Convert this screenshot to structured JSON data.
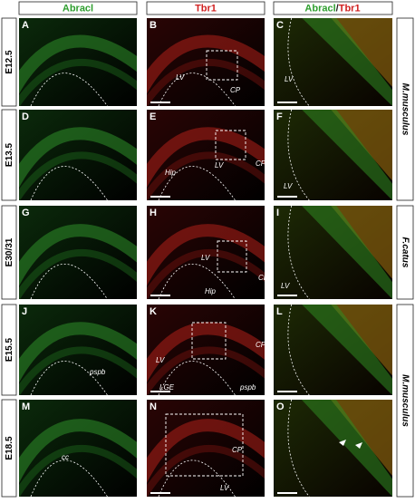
{
  "headers": {
    "col1": "Abracl",
    "col2": "Tbr1",
    "col3": {
      "a": "Abracl",
      "sep": "/",
      "b": "Tbr1"
    }
  },
  "rows": [
    {
      "stage": "E12.5",
      "panels": [
        {
          "letter": "A",
          "labels": []
        },
        {
          "letter": "B",
          "labels": [
            "LV",
            "CP"
          ]
        },
        {
          "letter": "C",
          "labels": [
            "LV"
          ]
        }
      ]
    },
    {
      "stage": "E13.5",
      "panels": [
        {
          "letter": "D",
          "labels": []
        },
        {
          "letter": "E",
          "labels": [
            "Hip",
            "LV",
            "CP"
          ]
        },
        {
          "letter": "F",
          "labels": [
            "LV"
          ]
        }
      ]
    },
    {
      "stage": "E30/31",
      "panels": [
        {
          "letter": "G",
          "labels": []
        },
        {
          "letter": "H",
          "labels": [
            "LV",
            "CP",
            "Hip"
          ]
        },
        {
          "letter": "I",
          "labels": [
            "LV"
          ]
        }
      ]
    },
    {
      "stage": "E15.5",
      "panels": [
        {
          "letter": "J",
          "labels": [
            "pspb"
          ]
        },
        {
          "letter": "K",
          "labels": [
            "LV",
            "LGE",
            "pspb",
            "CP"
          ]
        },
        {
          "letter": "L",
          "labels": []
        }
      ]
    },
    {
      "stage": "E18.5",
      "panels": [
        {
          "letter": "M",
          "labels": [
            "cc"
          ]
        },
        {
          "letter": "N",
          "labels": [
            "CP",
            "LV"
          ]
        },
        {
          "letter": "O",
          "labels": []
        }
      ]
    }
  ],
  "species": [
    "M.musculus",
    "F.catus",
    "M.musculus"
  ]
}
